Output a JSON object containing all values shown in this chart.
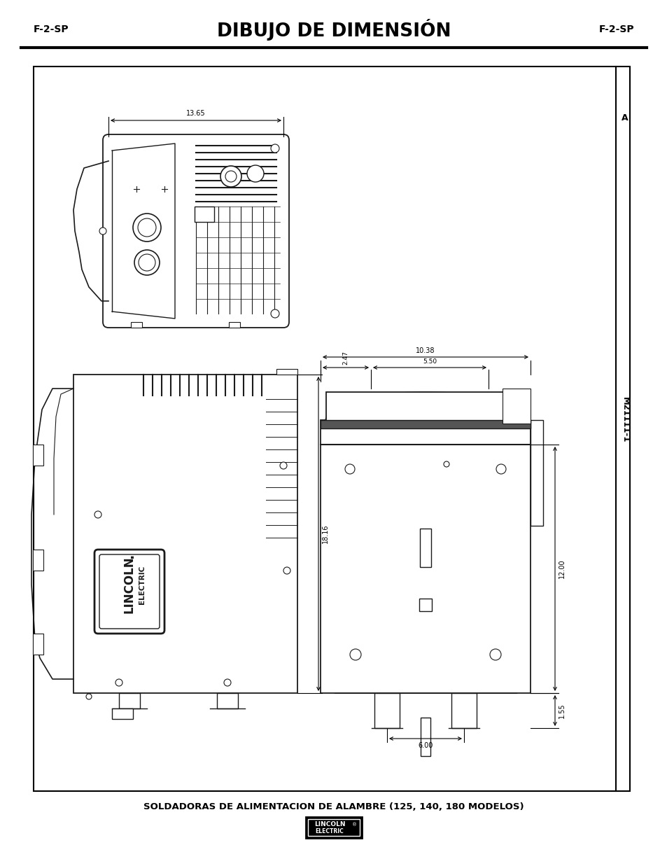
{
  "title": "DIBUJO DE DIMENSIÓN",
  "left_label": "F-2-SP",
  "right_label": "F-2-SP",
  "side_label": "M21111-1",
  "side_label_a": "A",
  "bottom_text": "SOLDADORAS DE ALIMENTACION DE ALAMBRE (125, 140, 180 MODELOS)",
  "bg_color": "#ffffff",
  "line_color": "#1a1a1a",
  "dim_color": "#1a1a1a"
}
